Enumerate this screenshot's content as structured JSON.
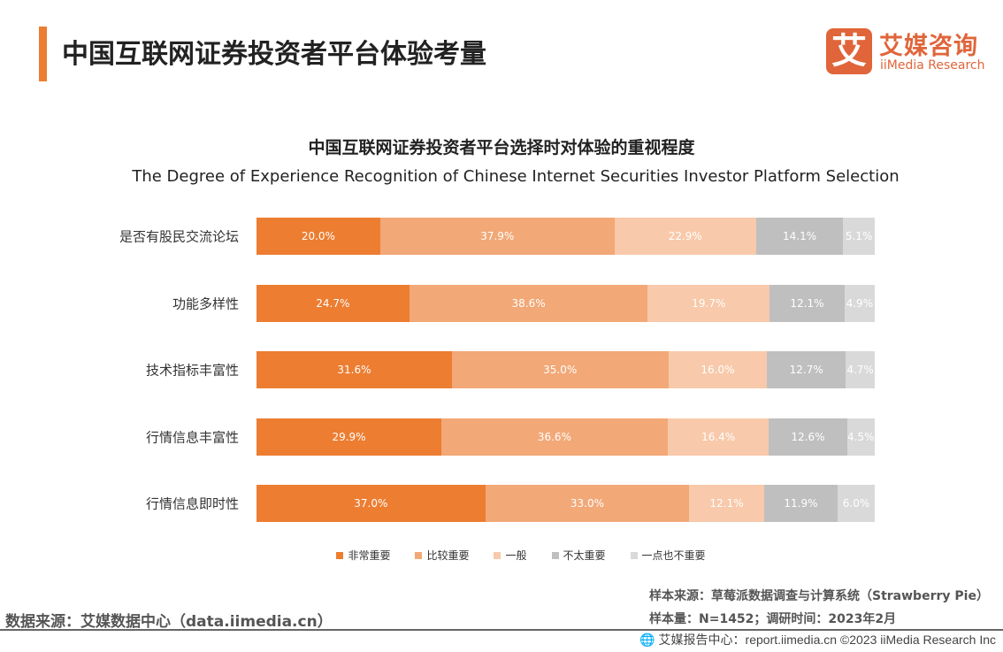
{
  "header": {
    "title": "中国互联网证券投资者平台体验考量",
    "logo_mark": "艾",
    "logo_cn": "艾媒咨询",
    "logo_en": "iiMedia Research"
  },
  "chart_data": {
    "type": "bar",
    "orientation": "horizontal-stacked-100",
    "title": "中国互联网证券投资者平台选择时对体验的重视程度",
    "subtitle": "The Degree of Experience Recognition of Chinese Internet Securities Investor Platform Selection",
    "categories": [
      "是否有股民交流论坛",
      "功能多样性",
      "技术指标丰富性",
      "行情信息丰富性",
      "行情信息即时性"
    ],
    "series": [
      {
        "name": "非常重要",
        "color": "#ED7D31",
        "values": [
          20.0,
          24.7,
          31.6,
          29.9,
          37.0
        ]
      },
      {
        "name": "比较重要",
        "color": "#F2A877",
        "values": [
          37.9,
          38.6,
          35.0,
          36.6,
          33.0
        ]
      },
      {
        "name": "一般",
        "color": "#F8C9AA",
        "values": [
          22.9,
          19.7,
          16.0,
          16.4,
          12.1
        ]
      },
      {
        "name": "不太重要",
        "color": "#BFBFBF",
        "values": [
          14.1,
          12.1,
          12.7,
          12.6,
          11.9
        ]
      },
      {
        "name": "一点也不重要",
        "color": "#D9D9D9",
        "values": [
          5.1,
          4.9,
          4.7,
          4.5,
          6.0
        ]
      }
    ],
    "unit": "%",
    "legend": "bottom",
    "grid": false
  },
  "footer": {
    "source": "数据来源：艾媒数据中心（data.iimedia.cn）",
    "sample_source": "样本来源：草莓派数据调查与计算系统（Strawberry Pie）",
    "sample_size": "样本量：N=1452；调研时间：2023年2月",
    "report": "艾媒报告中心：report.iimedia.cn   ©2023  iiMedia Research  Inc"
  }
}
